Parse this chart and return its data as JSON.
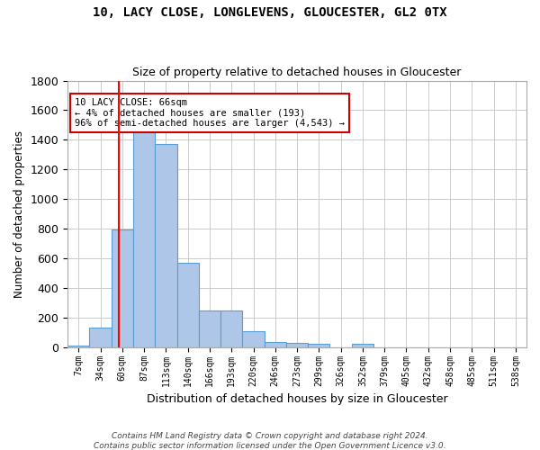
{
  "title1": "10, LACY CLOSE, LONGLEVENS, GLOUCESTER, GL2 0TX",
  "title2": "Size of property relative to detached houses in Gloucester",
  "xlabel": "Distribution of detached houses by size in Gloucester",
  "ylabel": "Number of detached properties",
  "footer1": "Contains HM Land Registry data © Crown copyright and database right 2024.",
  "footer2": "Contains public sector information licensed under the Open Government Licence v3.0.",
  "annotation_line1": "10 LACY CLOSE: 66sqm",
  "annotation_line2": "← 4% of detached houses are smaller (193)",
  "annotation_line3": "96% of semi-detached houses are larger (4,543) →",
  "bar_values": [
    10,
    130,
    795,
    1470,
    1370,
    570,
    250,
    250,
    110,
    35,
    30,
    20,
    0,
    20,
    0,
    0,
    0,
    0,
    0,
    0,
    0
  ],
  "bin_labels": [
    "7sqm",
    "34sqm",
    "60sqm",
    "87sqm",
    "113sqm",
    "140sqm",
    "166sqm",
    "193sqm",
    "220sqm",
    "246sqm",
    "273sqm",
    "299sqm",
    "326sqm",
    "352sqm",
    "379sqm",
    "405sqm",
    "432sqm",
    "458sqm",
    "485sqm",
    "511sqm",
    "538sqm"
  ],
  "bar_color": "#aec6e8",
  "bar_edgecolor": "#5a9fd4",
  "red_line_x": 1.85,
  "ylim": [
    0,
    1800
  ],
  "annotation_box_color": "#ffffff",
  "annotation_box_edgecolor": "#cc0000",
  "background_color": "#ffffff",
  "grid_color": "#cccccc"
}
